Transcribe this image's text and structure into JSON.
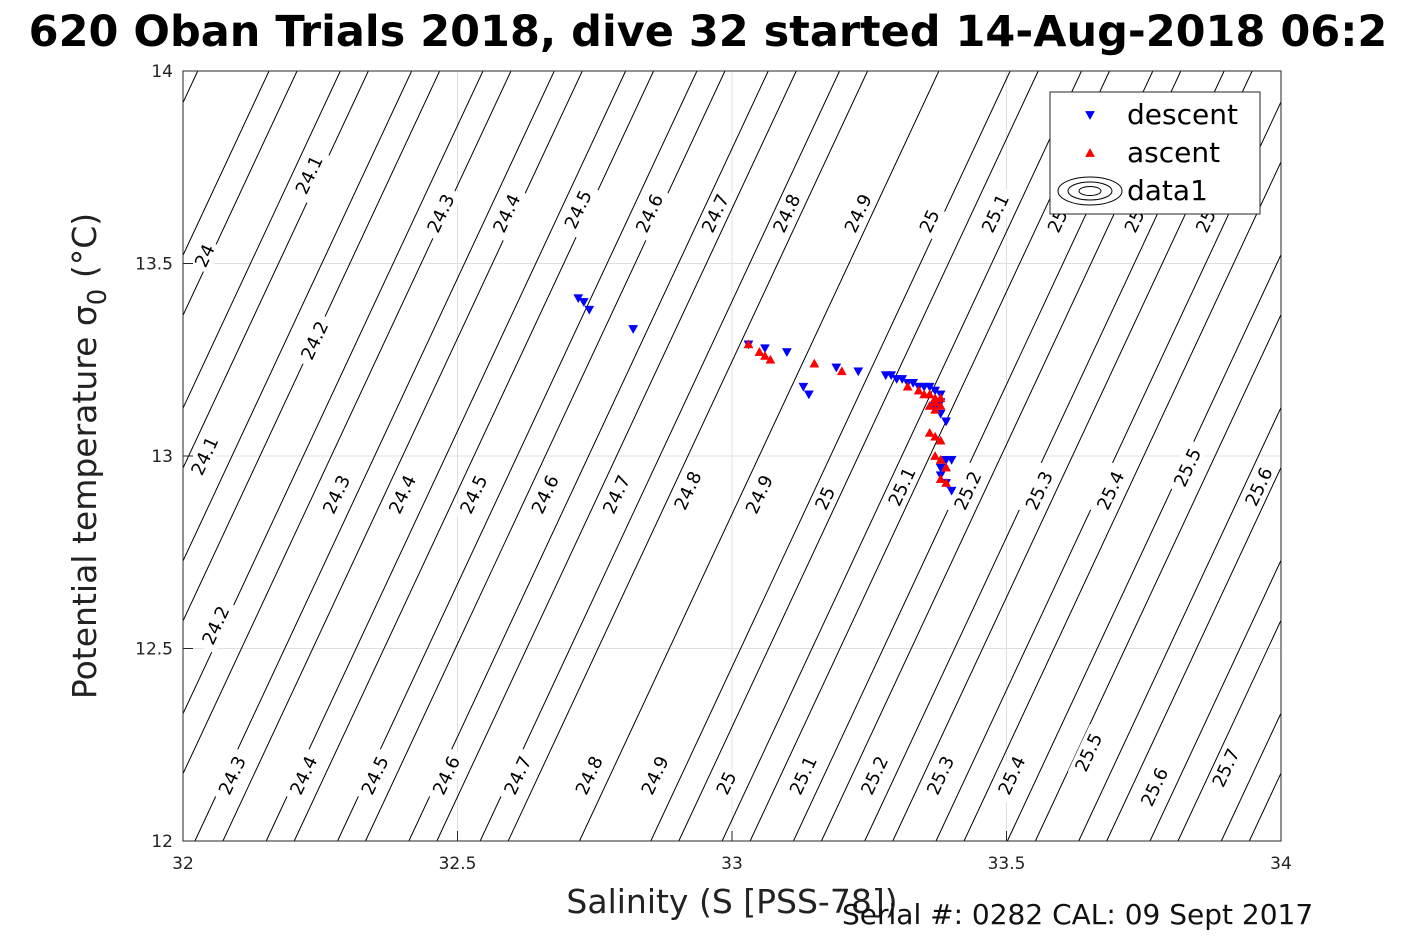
{
  "title": "620 Oban Trials 2018, dive 32 started 14-Aug-2018 06:2",
  "footer": "Serial #: 0282  CAL: 09 Sept 2017",
  "chart_data": {
    "type": "scatter",
    "title": "620 Oban Trials 2018, dive 32 started 14-Aug-2018 06:2",
    "xlabel": "Salinity (S [PSS-78])",
    "ylabel": "Potential temperature σ0 (°C)",
    "xlim": [
      32,
      34
    ],
    "ylim": [
      12,
      14
    ],
    "xticks": [
      "32",
      "32.5",
      "33",
      "33.5",
      "34"
    ],
    "yticks": [
      "12",
      "12.5",
      "13",
      "13.5",
      "14"
    ],
    "grid": true,
    "legend_position": "top-right",
    "colors": {
      "descent": "#0000ff",
      "ascent": "#ff0000",
      "contour": "#000000",
      "grid": "#e0e0e0"
    },
    "density_contours": {
      "name": "data1",
      "levels": [
        24.0,
        24.1,
        24.2,
        24.3,
        24.4,
        24.5,
        24.6,
        24.7,
        24.8,
        24.9,
        25.0,
        25.1,
        25.2,
        25.3,
        25.4,
        25.5,
        25.6,
        25.7,
        25.8
      ],
      "labels": [
        {
          "text": "24",
          "s": 32.04,
          "t": 13.52
        },
        {
          "text": "24.1",
          "s": 32.23,
          "t": 13.73
        },
        {
          "text": "24.2",
          "s": 32.24,
          "t": 13.3
        },
        {
          "text": "24.3",
          "s": 32.47,
          "t": 13.63
        },
        {
          "text": "24.4",
          "s": 32.59,
          "t": 13.63
        },
        {
          "text": "24.5",
          "s": 32.72,
          "t": 13.64
        },
        {
          "text": "24.6",
          "s": 32.85,
          "t": 13.63
        },
        {
          "text": "24.7",
          "s": 32.97,
          "t": 13.63
        },
        {
          "text": "24.8",
          "s": 33.1,
          "t": 13.63
        },
        {
          "text": "24.9",
          "s": 33.23,
          "t": 13.63
        },
        {
          "text": "25",
          "s": 33.36,
          "t": 13.61
        },
        {
          "text": "25.1",
          "s": 33.48,
          "t": 13.63
        },
        {
          "text": "25.2",
          "s": 33.6,
          "t": 13.63
        },
        {
          "text": "25.3",
          "s": 33.74,
          "t": 13.63
        },
        {
          "text": "25.4",
          "s": 33.87,
          "t": 13.63
        },
        {
          "text": "24.1",
          "s": 32.04,
          "t": 13.0
        },
        {
          "text": "24.3",
          "s": 32.28,
          "t": 12.9
        },
        {
          "text": "24.4",
          "s": 32.4,
          "t": 12.9
        },
        {
          "text": "24.5",
          "s": 32.53,
          "t": 12.9
        },
        {
          "text": "24.6",
          "s": 32.66,
          "t": 12.9
        },
        {
          "text": "24.7",
          "s": 32.79,
          "t": 12.9
        },
        {
          "text": "24.8",
          "s": 32.92,
          "t": 12.91
        },
        {
          "text": "24.9",
          "s": 33.05,
          "t": 12.9
        },
        {
          "text": "25",
          "s": 33.17,
          "t": 12.89
        },
        {
          "text": "25.1",
          "s": 33.31,
          "t": 12.92
        },
        {
          "text": "25.2",
          "s": 33.43,
          "t": 12.91
        },
        {
          "text": "25.3",
          "s": 33.56,
          "t": 12.91
        },
        {
          "text": "25.4",
          "s": 33.69,
          "t": 12.91
        },
        {
          "text": "25.5",
          "s": 33.83,
          "t": 12.97
        },
        {
          "text": "25.6",
          "s": 33.96,
          "t": 12.92
        },
        {
          "text": "24.2",
          "s": 32.06,
          "t": 12.56
        },
        {
          "text": "24.3",
          "s": 32.09,
          "t": 12.17
        },
        {
          "text": "24.4",
          "s": 32.22,
          "t": 12.17
        },
        {
          "text": "24.5",
          "s": 32.35,
          "t": 12.17
        },
        {
          "text": "24.6",
          "s": 32.48,
          "t": 12.17
        },
        {
          "text": "24.7",
          "s": 32.61,
          "t": 12.17
        },
        {
          "text": "24.8",
          "s": 32.74,
          "t": 12.17
        },
        {
          "text": "24.9",
          "s": 32.86,
          "t": 12.17
        },
        {
          "text": "25",
          "s": 32.99,
          "t": 12.15
        },
        {
          "text": "25.1",
          "s": 33.13,
          "t": 12.17
        },
        {
          "text": "25.2",
          "s": 33.26,
          "t": 12.17
        },
        {
          "text": "25.3",
          "s": 33.38,
          "t": 12.17
        },
        {
          "text": "25.4",
          "s": 33.51,
          "t": 12.17
        },
        {
          "text": "25.5",
          "s": 33.65,
          "t": 12.23
        },
        {
          "text": "25.6",
          "s": 33.77,
          "t": 12.14
        },
        {
          "text": "25.7",
          "s": 33.9,
          "t": 12.19
        }
      ]
    },
    "series": [
      {
        "name": "descent",
        "marker": "triangle-down",
        "points": [
          [
            32.72,
            13.41
          ],
          [
            32.73,
            13.4
          ],
          [
            32.74,
            13.38
          ],
          [
            32.82,
            13.33
          ],
          [
            33.03,
            13.29
          ],
          [
            33.06,
            13.28
          ],
          [
            33.1,
            13.27
          ],
          [
            33.13,
            13.18
          ],
          [
            33.14,
            13.16
          ],
          [
            33.19,
            13.23
          ],
          [
            33.23,
            13.22
          ],
          [
            33.28,
            13.21
          ],
          [
            33.29,
            13.21
          ],
          [
            33.3,
            13.2
          ],
          [
            33.31,
            13.2
          ],
          [
            33.32,
            13.19
          ],
          [
            33.33,
            13.19
          ],
          [
            33.34,
            13.18
          ],
          [
            33.35,
            13.18
          ],
          [
            33.36,
            13.18
          ],
          [
            33.37,
            13.17
          ],
          [
            33.38,
            13.16
          ],
          [
            33.38,
            13.14
          ],
          [
            33.37,
            13.13
          ],
          [
            33.38,
            13.11
          ],
          [
            33.39,
            13.09
          ],
          [
            33.38,
            12.97
          ],
          [
            33.39,
            12.99
          ],
          [
            33.4,
            12.99
          ],
          [
            33.38,
            12.95
          ],
          [
            33.39,
            12.93
          ],
          [
            33.4,
            12.91
          ]
        ]
      },
      {
        "name": "ascent",
        "marker": "triangle-up",
        "points": [
          [
            33.03,
            13.29
          ],
          [
            33.05,
            13.27
          ],
          [
            33.06,
            13.26
          ],
          [
            33.07,
            13.25
          ],
          [
            33.15,
            13.24
          ],
          [
            33.2,
            13.22
          ],
          [
            33.32,
            13.18
          ],
          [
            33.34,
            13.17
          ],
          [
            33.35,
            13.16
          ],
          [
            33.36,
            13.16
          ],
          [
            33.37,
            13.15
          ],
          [
            33.36,
            13.13
          ],
          [
            33.37,
            13.14
          ],
          [
            33.38,
            13.13
          ],
          [
            33.37,
            13.12
          ],
          [
            33.38,
            13.15
          ],
          [
            33.36,
            13.06
          ],
          [
            33.37,
            13.05
          ],
          [
            33.38,
            13.04
          ],
          [
            33.37,
            13.0
          ],
          [
            33.38,
            12.99
          ],
          [
            33.39,
            12.97
          ],
          [
            33.38,
            12.94
          ],
          [
            33.39,
            12.93
          ]
        ]
      }
    ]
  }
}
